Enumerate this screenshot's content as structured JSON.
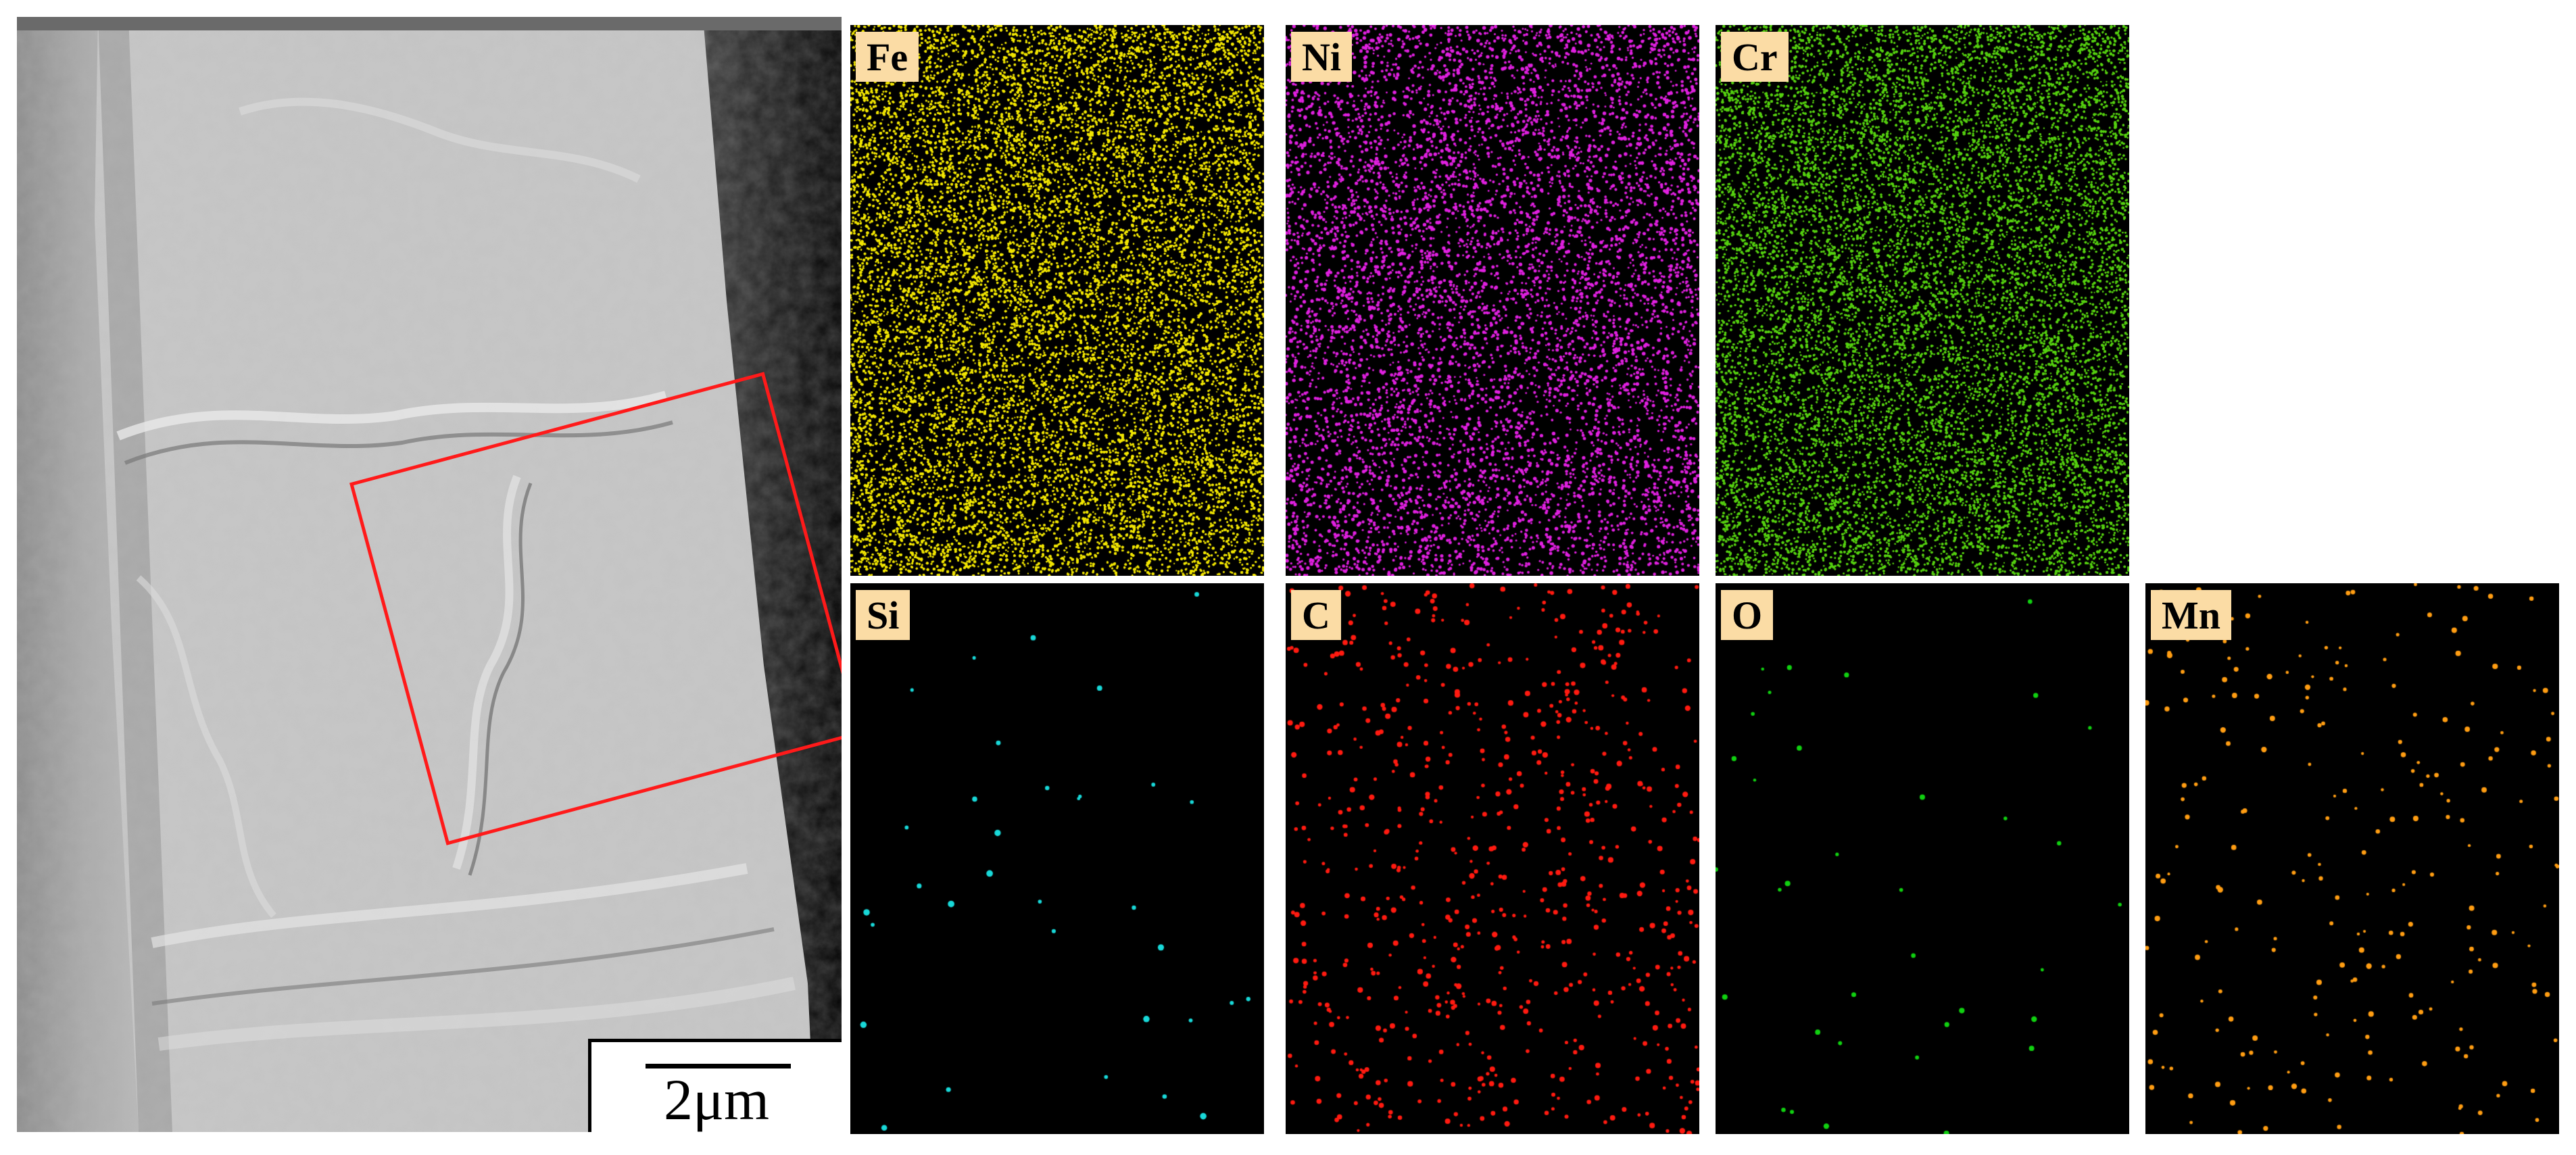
{
  "scale_bar": {
    "label": "2μm"
  },
  "colors": {
    "roi": "#ff1a1a",
    "label_bg": "#fbdca5"
  },
  "maps": [
    {
      "label": "Fe",
      "color": "#f2e600",
      "density": 0.62,
      "dot": 3
    },
    {
      "label": "Ni",
      "color": "#e020e0",
      "density": 0.14,
      "dot": 4
    },
    {
      "label": "Cr",
      "color": "#55d010",
      "density": 0.5,
      "dot": 3
    },
    {
      "label": "Si",
      "color": "#18d8d8",
      "density": 0.002,
      "dot": 7
    },
    {
      "label": "C",
      "color": "#ff1a10",
      "density": 0.03,
      "dot": 6
    },
    {
      "label": "O",
      "color": "#10d010",
      "density": 0.0016,
      "dot": 6
    },
    {
      "label": "Mn",
      "color": "#ff9d12",
      "density": 0.01,
      "dot": 6
    }
  ]
}
